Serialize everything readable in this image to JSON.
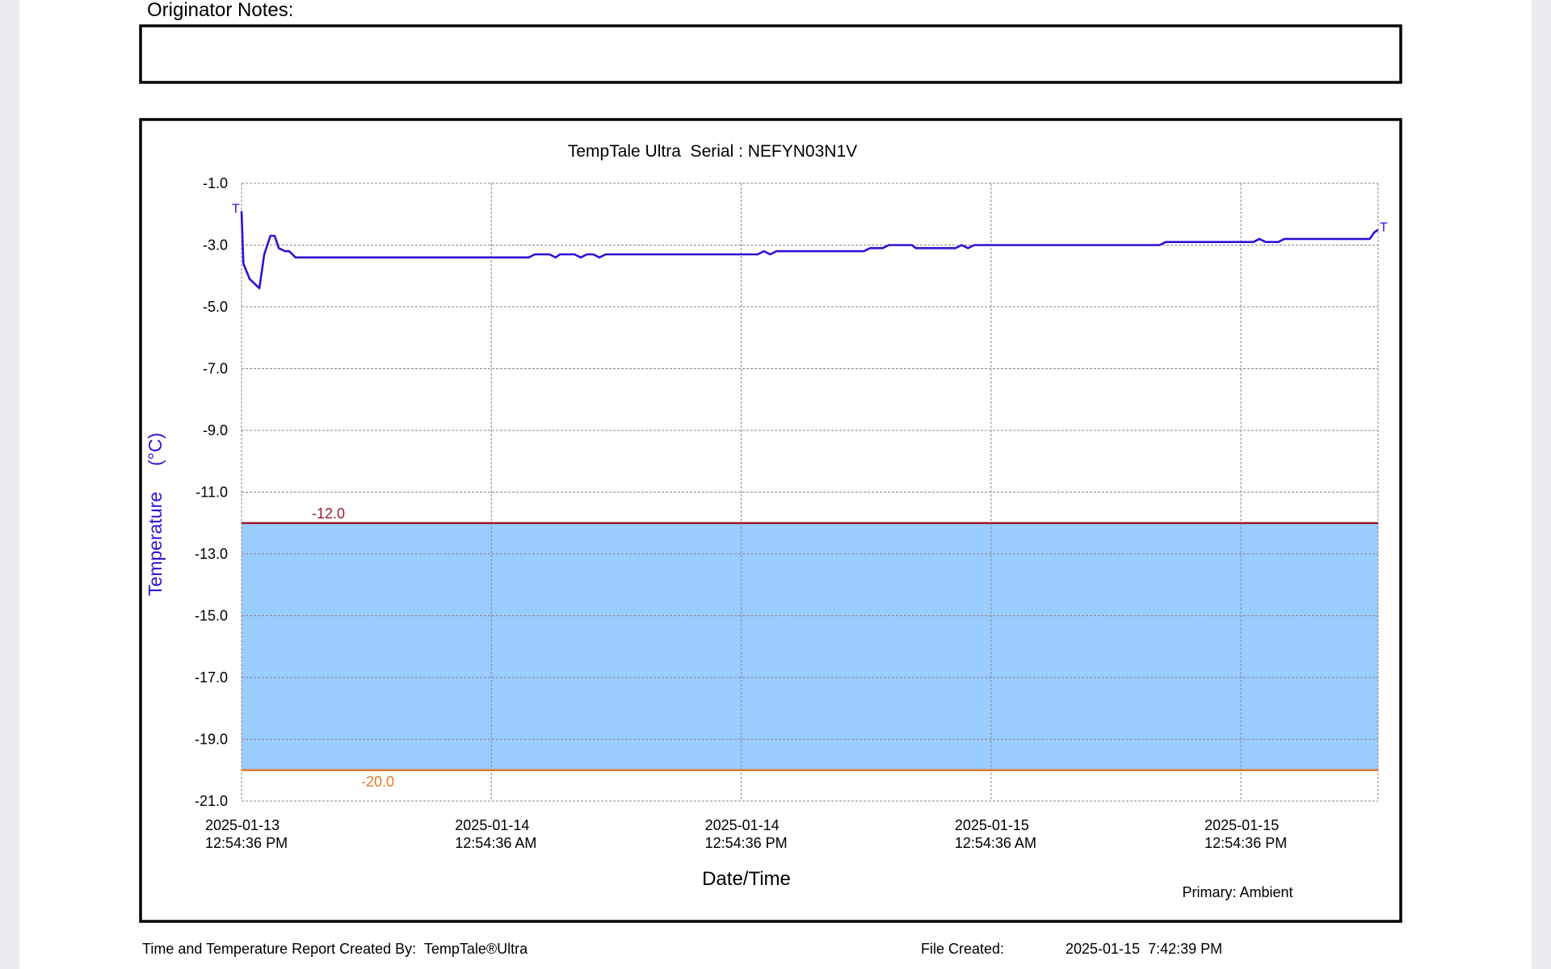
{
  "notes_label": "Originator Notes:",
  "footer": {
    "created_by": "Time and Temperature Report Created By:  TempTale®Ultra",
    "file_created_label": "File Created:",
    "file_created": "2025-01-15  7:42:39 PM"
  },
  "chart_data": {
    "type": "line",
    "title": "TempTale Ultra  Serial : NEFYN03N1V",
    "x_label": "Date/Time",
    "y_label": "Temperature     (°C)",
    "legend_note": "Primary: Ambient",
    "start_marker": "T",
    "end_marker": "T",
    "x": [
      "2025-01-13T12:54:36",
      "2025-01-13T13:00:00",
      "2025-01-13T13:18:00",
      "2025-01-13T13:46:00",
      "2025-01-13T14:00:00",
      "2025-01-13T14:18:00",
      "2025-01-13T14:30:00",
      "2025-01-13T14:42:00",
      "2025-01-13T15:00:00",
      "2025-01-13T15:12:00",
      "2025-01-13T15:30:00",
      "2025-01-14T02:42:00",
      "2025-01-14T03:00:00",
      "2025-01-14T03:42:00",
      "2025-01-14T04:00:00",
      "2025-01-14T04:12:00",
      "2025-01-14T04:54:00",
      "2025-01-14T05:12:00",
      "2025-01-14T05:30:00",
      "2025-01-14T05:48:00",
      "2025-01-14T06:06:00",
      "2025-01-14T06:24:00",
      "2025-01-14T13:42:00",
      "2025-01-14T14:00:00",
      "2025-01-14T14:18:00",
      "2025-01-14T14:36:00",
      "2025-01-14T18:48:00",
      "2025-01-14T19:06:00",
      "2025-01-14T19:42:00",
      "2025-01-14T20:00:00",
      "2025-01-14T21:06:00",
      "2025-01-14T21:18:00",
      "2025-01-14T23:12:00",
      "2025-01-14T23:30:00",
      "2025-01-14T23:48:00",
      "2025-01-15T00:06:00",
      "2025-01-15T09:00:00",
      "2025-01-15T09:18:00",
      "2025-01-15T13:30:00",
      "2025-01-15T13:48:00",
      "2025-01-15T14:06:00",
      "2025-01-15T14:42:00",
      "2025-01-15T15:00:00",
      "2025-01-15T19:06:00",
      "2025-01-15T19:18:00",
      "2025-01-15T19:30:00"
    ],
    "series": [
      {
        "name": "Ambient",
        "color": "#2a13d6",
        "values": [
          -1.9,
          -3.6,
          -4.1,
          -4.4,
          -3.3,
          -2.7,
          -2.7,
          -3.1,
          -3.2,
          -3.2,
          -3.4,
          -3.4,
          -3.3,
          -3.3,
          -3.4,
          -3.3,
          -3.3,
          -3.4,
          -3.3,
          -3.3,
          -3.4,
          -3.3,
          -3.3,
          -3.2,
          -3.3,
          -3.2,
          -3.2,
          -3.1,
          -3.1,
          -3.0,
          -3.0,
          -3.1,
          -3.1,
          -3.0,
          -3.1,
          -3.0,
          -3.0,
          -2.9,
          -2.9,
          -2.8,
          -2.9,
          -2.9,
          -2.8,
          -2.8,
          -2.6,
          -2.5
        ]
      }
    ],
    "xlim": [
      "2025-01-13T12:54:36",
      "2025-01-15T19:30:00"
    ],
    "xticks": [
      {
        "value": "2025-01-13T12:54:36",
        "label": "2025-01-13\n12:54:36 PM"
      },
      {
        "value": "2025-01-14T00:54:36",
        "label": "2025-01-14\n12:54:36 AM"
      },
      {
        "value": "2025-01-14T12:54:36",
        "label": "2025-01-14\n12:54:36 PM"
      },
      {
        "value": "2025-01-15T00:54:36",
        "label": "2025-01-15\n12:54:36 AM"
      },
      {
        "value": "2025-01-15T12:54:36",
        "label": "2025-01-15\n12:54:36 PM"
      }
    ],
    "ylim": [
      -21,
      -1
    ],
    "yticks": [
      {
        "value": -1,
        "label": "-1.0"
      },
      {
        "value": -3,
        "label": "-3.0"
      },
      {
        "value": -5,
        "label": "-5.0"
      },
      {
        "value": -7,
        "label": "-7.0"
      },
      {
        "value": -9,
        "label": "-9.0"
      },
      {
        "value": -11,
        "label": "-11.0"
      },
      {
        "value": -13,
        "label": "-13.0"
      },
      {
        "value": -15,
        "label": "-15.0"
      },
      {
        "value": -17,
        "label": "-17.0"
      },
      {
        "value": -19,
        "label": "-19.0"
      },
      {
        "value": -21,
        "label": "-21.0"
      }
    ],
    "grid": true,
    "alarms": [
      {
        "value": -12,
        "label": "-12.0",
        "color": "#9b1b30"
      },
      {
        "value": -20,
        "label": "-20.0",
        "color": "#e8782a"
      }
    ],
    "range_fill": "#99ccff"
  }
}
